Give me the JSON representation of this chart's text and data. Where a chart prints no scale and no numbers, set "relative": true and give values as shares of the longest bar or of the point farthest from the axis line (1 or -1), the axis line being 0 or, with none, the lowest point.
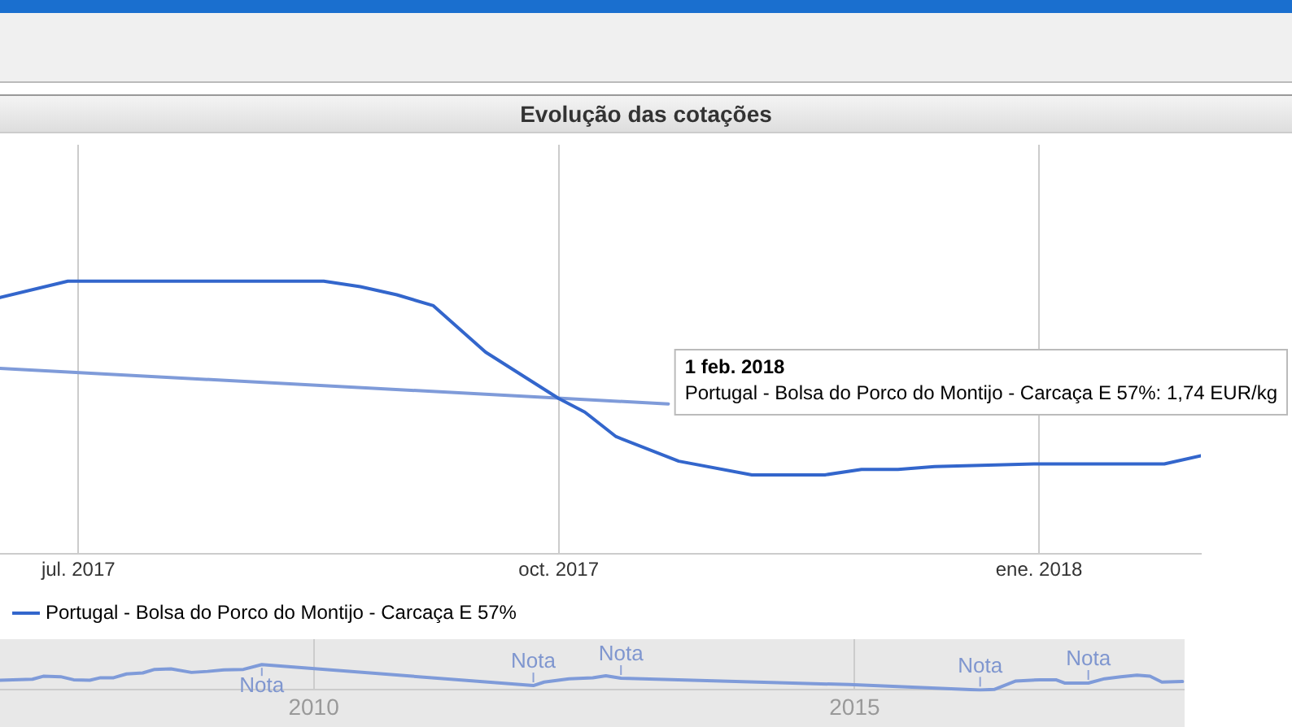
{
  "chart_data": [
    {
      "type": "line",
      "title": "Evolução das cotações",
      "relative": true,
      "xlim": [
        "2017-06-16",
        "2018-02-01"
      ],
      "xticks": [
        {
          "value": "2017-07-01",
          "label": "jul. 2017"
        },
        {
          "value": "2017-10-01",
          "label": "oct. 2017"
        },
        {
          "value": "2018-01-01",
          "label": "ene. 2018"
        }
      ],
      "grid": "x",
      "legend": "bottom left",
      "line_style": "solid",
      "series": [
        {
          "name": "Portugal - Bolsa do Porco do Montijo - Carcaça E 57%",
          "color": "#3366cc",
          "x": [
            "2017-06-16",
            "2017-06-29",
            "2017-08-17",
            "2017-08-24",
            "2017-08-31",
            "2017-09-07",
            "2017-09-17",
            "2017-10-01",
            "2017-10-06",
            "2017-10-12",
            "2017-10-24",
            "2017-11-07",
            "2017-11-21",
            "2017-11-28",
            "2017-12-05",
            "2017-12-12",
            "2017-12-31",
            "2018-01-25",
            "2018-02-01"
          ],
          "values": [
            0.94,
            1.0,
            1.0,
            0.98,
            0.95,
            0.91,
            0.74,
            0.57,
            0.52,
            0.43,
            0.34,
            0.29,
            0.29,
            0.31,
            0.31,
            0.32,
            0.33,
            0.33,
            0.36
          ]
        },
        {
          "color": "#7f9bd9",
          "x": [
            "2017-06-16",
            "2017-10-22"
          ],
          "values": [
            0.68,
            0.55
          ]
        }
      ],
      "annotations": [
        "1 feb. 2018",
        "Portugal - Bolsa do Porco do Montijo - Carcaça E 57%: 1,74 EUR/kg"
      ]
    },
    {
      "type": "line",
      "relative": true,
      "xlim": [
        2007.1,
        2018.05
      ],
      "xticks": [
        2010,
        2015
      ],
      "grid": "x",
      "line_style": "solid",
      "series": [
        {
          "color": "#7f9bd9",
          "x": [
            2007.1,
            2007.4,
            2007.5,
            2007.66,
            2007.78,
            2007.93,
            2008.03,
            2008.15,
            2008.27,
            2008.42,
            2008.53,
            2008.68,
            2008.87,
            2009.02,
            2009.17,
            2009.35,
            2009.52,
            2012.03,
            2012.13,
            2012.36,
            2012.58,
            2012.7,
            2012.84,
            2014.95,
            2016.16,
            2016.29,
            2016.49,
            2016.71,
            2016.86,
            2016.94,
            2017.16,
            2017.31,
            2017.46,
            2017.61,
            2017.73,
            2017.84,
            2018.03
          ],
          "values": [
            0.38,
            0.42,
            0.54,
            0.52,
            0.4,
            0.38,
            0.48,
            0.48,
            0.63,
            0.67,
            0.81,
            0.83,
            0.69,
            0.73,
            0.79,
            0.81,
            1.0,
            0.17,
            0.31,
            0.44,
            0.48,
            0.56,
            0.46,
            0.21,
            0,
            0.02,
            0.35,
            0.4,
            0.4,
            0.27,
            0.27,
            0.44,
            0.52,
            0.58,
            0.54,
            0.31,
            0.33
          ]
        }
      ],
      "annotations": [
        {
          "text": "Nota",
          "x": 2009.52,
          "y": 1.0
        },
        {
          "text": "Nota",
          "x": 2012.03,
          "y": 0.17
        },
        {
          "text": "Nota",
          "x": 2012.84,
          "y": 0.46
        },
        {
          "text": "Nota",
          "x": 2016.16,
          "y": 0
        },
        {
          "text": "Nota",
          "x": 2017.16,
          "y": 0.27
        }
      ]
    }
  ]
}
